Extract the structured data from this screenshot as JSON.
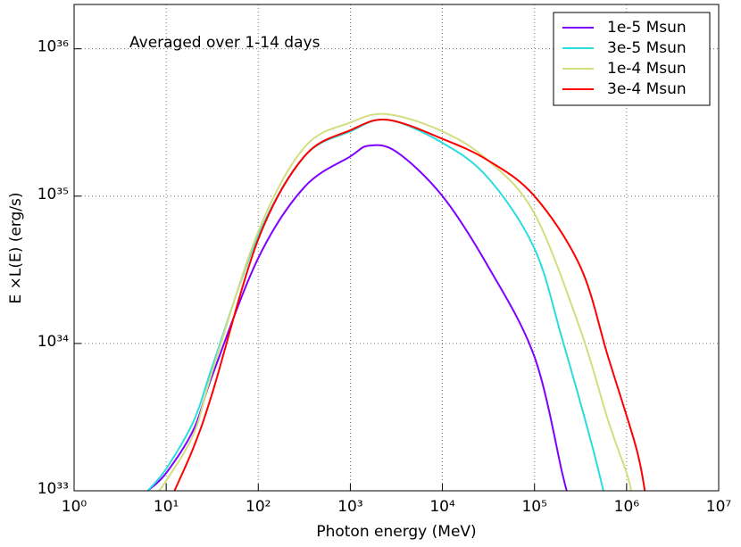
{
  "chart_data": {
    "type": "line",
    "annotation": "Averaged over 1-14 days",
    "xlabel": "Photon energy (MeV)",
    "ylabel": "E ×L(E) (erg/s)",
    "xlog": true,
    "ylog": true,
    "grid": true,
    "legend": "upper right",
    "xlim": [
      1,
      10000000
    ],
    "ylim": [
      1e+33,
      2e+36
    ],
    "xticks": [
      {
        "value": 1,
        "label": "10⁰"
      },
      {
        "value": 10,
        "label": "10¹"
      },
      {
        "value": 100,
        "label": "10²"
      },
      {
        "value": 1000,
        "label": "10³"
      },
      {
        "value": 10000,
        "label": "10⁴"
      },
      {
        "value": 100000,
        "label": "10⁵"
      },
      {
        "value": 1000000,
        "label": "10⁶"
      },
      {
        "value": 10000000,
        "label": "10⁷"
      }
    ],
    "yticks": [
      {
        "value": 1e+33,
        "label": "10³³"
      },
      {
        "value": 1e+34,
        "label": "10³⁴"
      },
      {
        "value": 1e+35,
        "label": "10³⁵"
      },
      {
        "value": 1e+36,
        "label": "10³⁶"
      }
    ],
    "series": [
      {
        "name": "1e-5 Msun",
        "color": "#7f00ff",
        "x": [
          6.3,
          10,
          20,
          32,
          100,
          316,
          1000,
          1585,
          3162,
          10000,
          31623,
          100000,
          200000,
          224000
        ],
        "values": [
          1e+33,
          1.32e+33,
          2.63e+33,
          6.17e+33,
          3.8e+34,
          1.15e+35,
          1.86e+35,
          2.2e+35,
          2e+35,
          1e+35,
          3.3e+34,
          8.1e+33,
          1.32e+33,
          1e+33
        ]
      },
      {
        "name": "3e-5 Msun",
        "color": "#2adddd",
        "x": [
          6.3,
          10,
          20,
          32,
          100,
          316,
          1000,
          2512,
          10000,
          31623,
          100000,
          200000,
          400000,
          560000
        ],
        "values": [
          1e+33,
          1.41e+33,
          3e+33,
          7.1e+33,
          5.4e+34,
          1.86e+35,
          2.75e+35,
          3.3e+35,
          2.3e+35,
          1.32e+35,
          4.4e+34,
          1.07e+34,
          2.3e+33,
          1e+33
        ]
      },
      {
        "name": "1e-4 Msun",
        "color": "#d4dd80",
        "x": [
          8.3,
          10,
          20,
          32,
          100,
          316,
          1000,
          2512,
          10000,
          31623,
          100000,
          316000,
          630000,
          1000000,
          1120000
        ],
        "values": [
          1e+33,
          1.17e+33,
          2.45e+33,
          6.6e+33,
          5.75e+34,
          2.14e+35,
          3.16e+35,
          3.6e+35,
          2.75e+35,
          1.74e+35,
          7.6e+34,
          1.23e+34,
          3e+33,
          1.32e+33,
          1e+33
        ]
      },
      {
        "name": "3e-4 Msun",
        "color": "#ff0000",
        "x": [
          12.3,
          20,
          32,
          100,
          316,
          1000,
          2512,
          10000,
          31623,
          100000,
          316000,
          630000,
          1260000,
          1580000
        ],
        "values": [
          1e+33,
          2e+33,
          4.7e+33,
          5.1e+34,
          1.86e+35,
          2.8e+35,
          3.3e+35,
          2.45e+35,
          1.74e+35,
          1e+35,
          3.3e+34,
          8.1e+33,
          2e+33,
          1e+33
        ]
      }
    ]
  }
}
